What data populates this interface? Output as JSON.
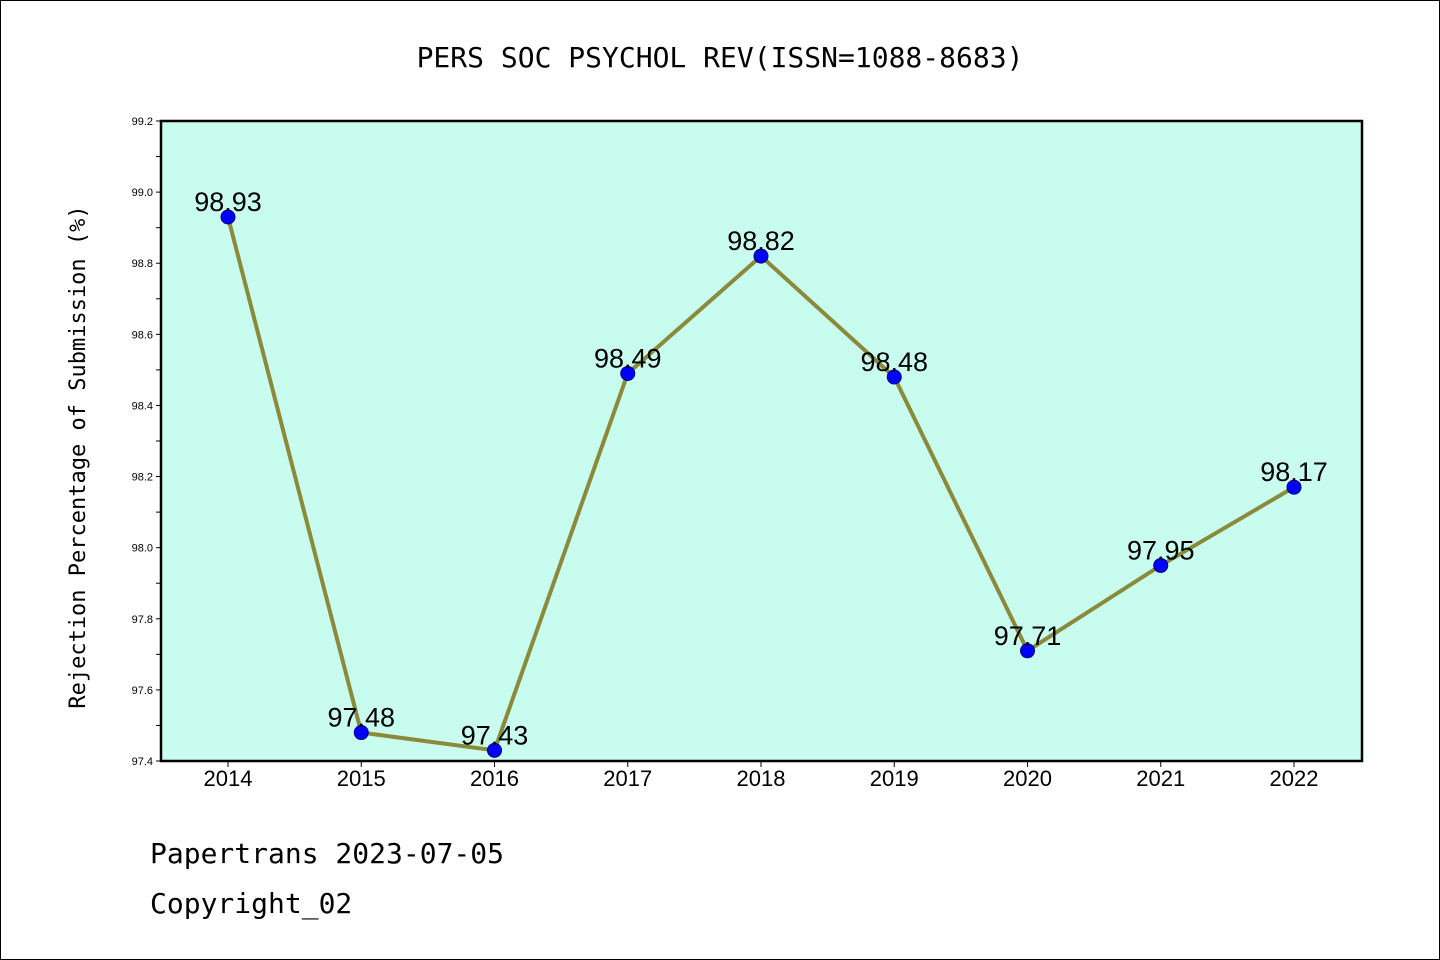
{
  "chart_data": {
    "type": "line",
    "title": "PERS SOC PSYCHOL REV(ISSN=1088-8683)",
    "xlabel": "",
    "ylabel": "Rejection Percentage of Submission (%)",
    "categories": [
      "2014",
      "2015",
      "2016",
      "2017",
      "2018",
      "2019",
      "2020",
      "2021",
      "2022"
    ],
    "series": [
      {
        "values": [
          98.93,
          97.48,
          97.43,
          98.49,
          98.82,
          98.48,
          97.71,
          97.95,
          98.17
        ],
        "data_labels": [
          "98.93",
          "97.48",
          "97.43",
          "98.49",
          "98.82",
          "98.48",
          "97.71",
          "97.95",
          "98.17"
        ]
      }
    ],
    "ylim": [
      97.4,
      99.2
    ],
    "yticks": [
      "97.4",
      "97.6",
      "97.8",
      "98.0",
      "98.2",
      "98.4",
      "98.6",
      "98.8",
      "99.0",
      "99.2"
    ],
    "grid": false,
    "legend": "none",
    "colors": {
      "plot_background": "#c8fcee",
      "line": "#8b8a3a",
      "marker": "#0000ff",
      "marker_edge": "#000080"
    }
  },
  "footer": {
    "line1": "Papertrans 2023-07-05",
    "line2": "Copyright_02"
  }
}
